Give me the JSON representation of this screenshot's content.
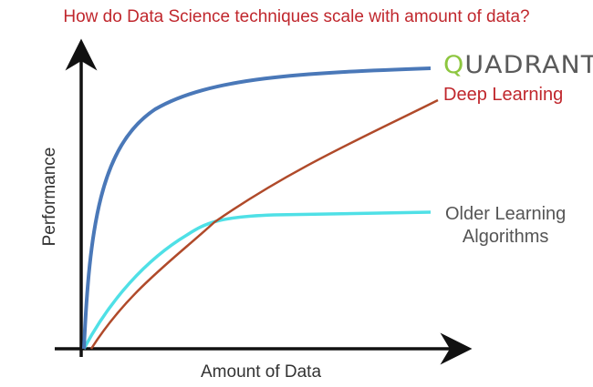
{
  "title": "How do Data Science techniques scale with amount of data?",
  "logo": {
    "first": "Q",
    "rest": "UADRANT"
  },
  "axes": {
    "x_label": "Amount of Data",
    "y_label": "Performance"
  },
  "series": [
    {
      "label": "QUADRANT",
      "color": "#4a78b8"
    },
    {
      "label": "Deep Learning",
      "color": "#b04a2a"
    },
    {
      "label": "Older Learning Algorithms",
      "line1": "Older Learning",
      "line2": "Algorithms",
      "color": "#4fe0e6"
    }
  ]
}
